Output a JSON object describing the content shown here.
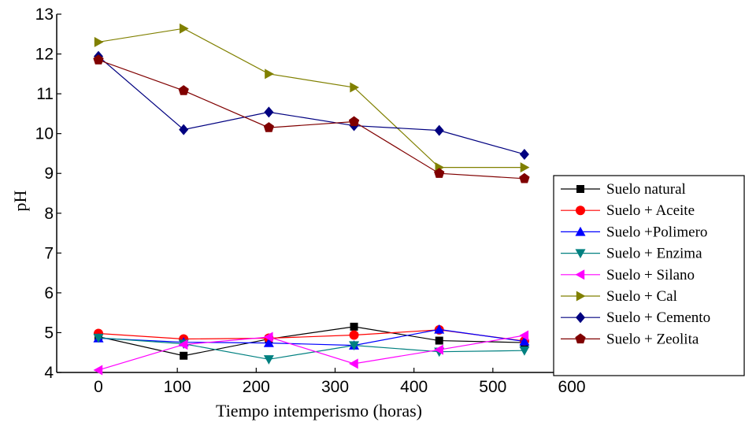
{
  "chart_data": {
    "type": "line",
    "xlabel": "Tiempo intemperismo (horas)",
    "ylabel": "pH",
    "xlim": [
      -50,
      600
    ],
    "ylim": [
      4,
      13
    ],
    "xticks": [
      0,
      100,
      200,
      300,
      400,
      500,
      600
    ],
    "yticks": [
      4,
      5,
      6,
      7,
      8,
      9,
      10,
      11,
      12,
      13
    ],
    "grid": false,
    "legend_position": "right",
    "x": [
      0,
      108,
      216,
      324,
      432,
      540
    ],
    "series": [
      {
        "name": "Suelo natural",
        "color": "#000000",
        "marker": "square",
        "values": [
          4.9,
          4.42,
          4.84,
          5.15,
          4.8,
          4.75
        ]
      },
      {
        "name": "Suelo + Aceite",
        "color": "#ff0000",
        "marker": "circle",
        "values": [
          4.98,
          4.84,
          4.86,
          4.94,
          5.07,
          4.79
        ]
      },
      {
        "name": "Suelo +Polimero",
        "color": "#0000ff",
        "marker": "triangle-up",
        "values": [
          4.86,
          4.76,
          4.74,
          4.68,
          5.08,
          4.78
        ]
      },
      {
        "name": "Suelo + Enzima",
        "color": "#008080",
        "marker": "triangle-down",
        "values": [
          4.87,
          4.72,
          4.33,
          4.68,
          4.52,
          4.55
        ]
      },
      {
        "name": "Suelo + Silano",
        "color": "#ff00ff",
        "marker": "triangle-left",
        "values": [
          4.06,
          4.7,
          4.89,
          4.22,
          4.57,
          4.93
        ]
      },
      {
        "name": "Suelo + Cal",
        "color": "#808000",
        "marker": "triangle-right",
        "values": [
          12.3,
          12.64,
          11.5,
          11.16,
          9.15,
          9.15
        ]
      },
      {
        "name": "Suelo + Cemento",
        "color": "#000080",
        "marker": "diamond",
        "values": [
          11.94,
          10.1,
          10.54,
          10.2,
          10.08,
          9.48
        ]
      },
      {
        "name": "Suelo + Zeolita",
        "color": "#800000",
        "marker": "pentagon",
        "values": [
          11.85,
          11.08,
          10.15,
          10.3,
          9.0,
          8.87
        ]
      }
    ]
  }
}
